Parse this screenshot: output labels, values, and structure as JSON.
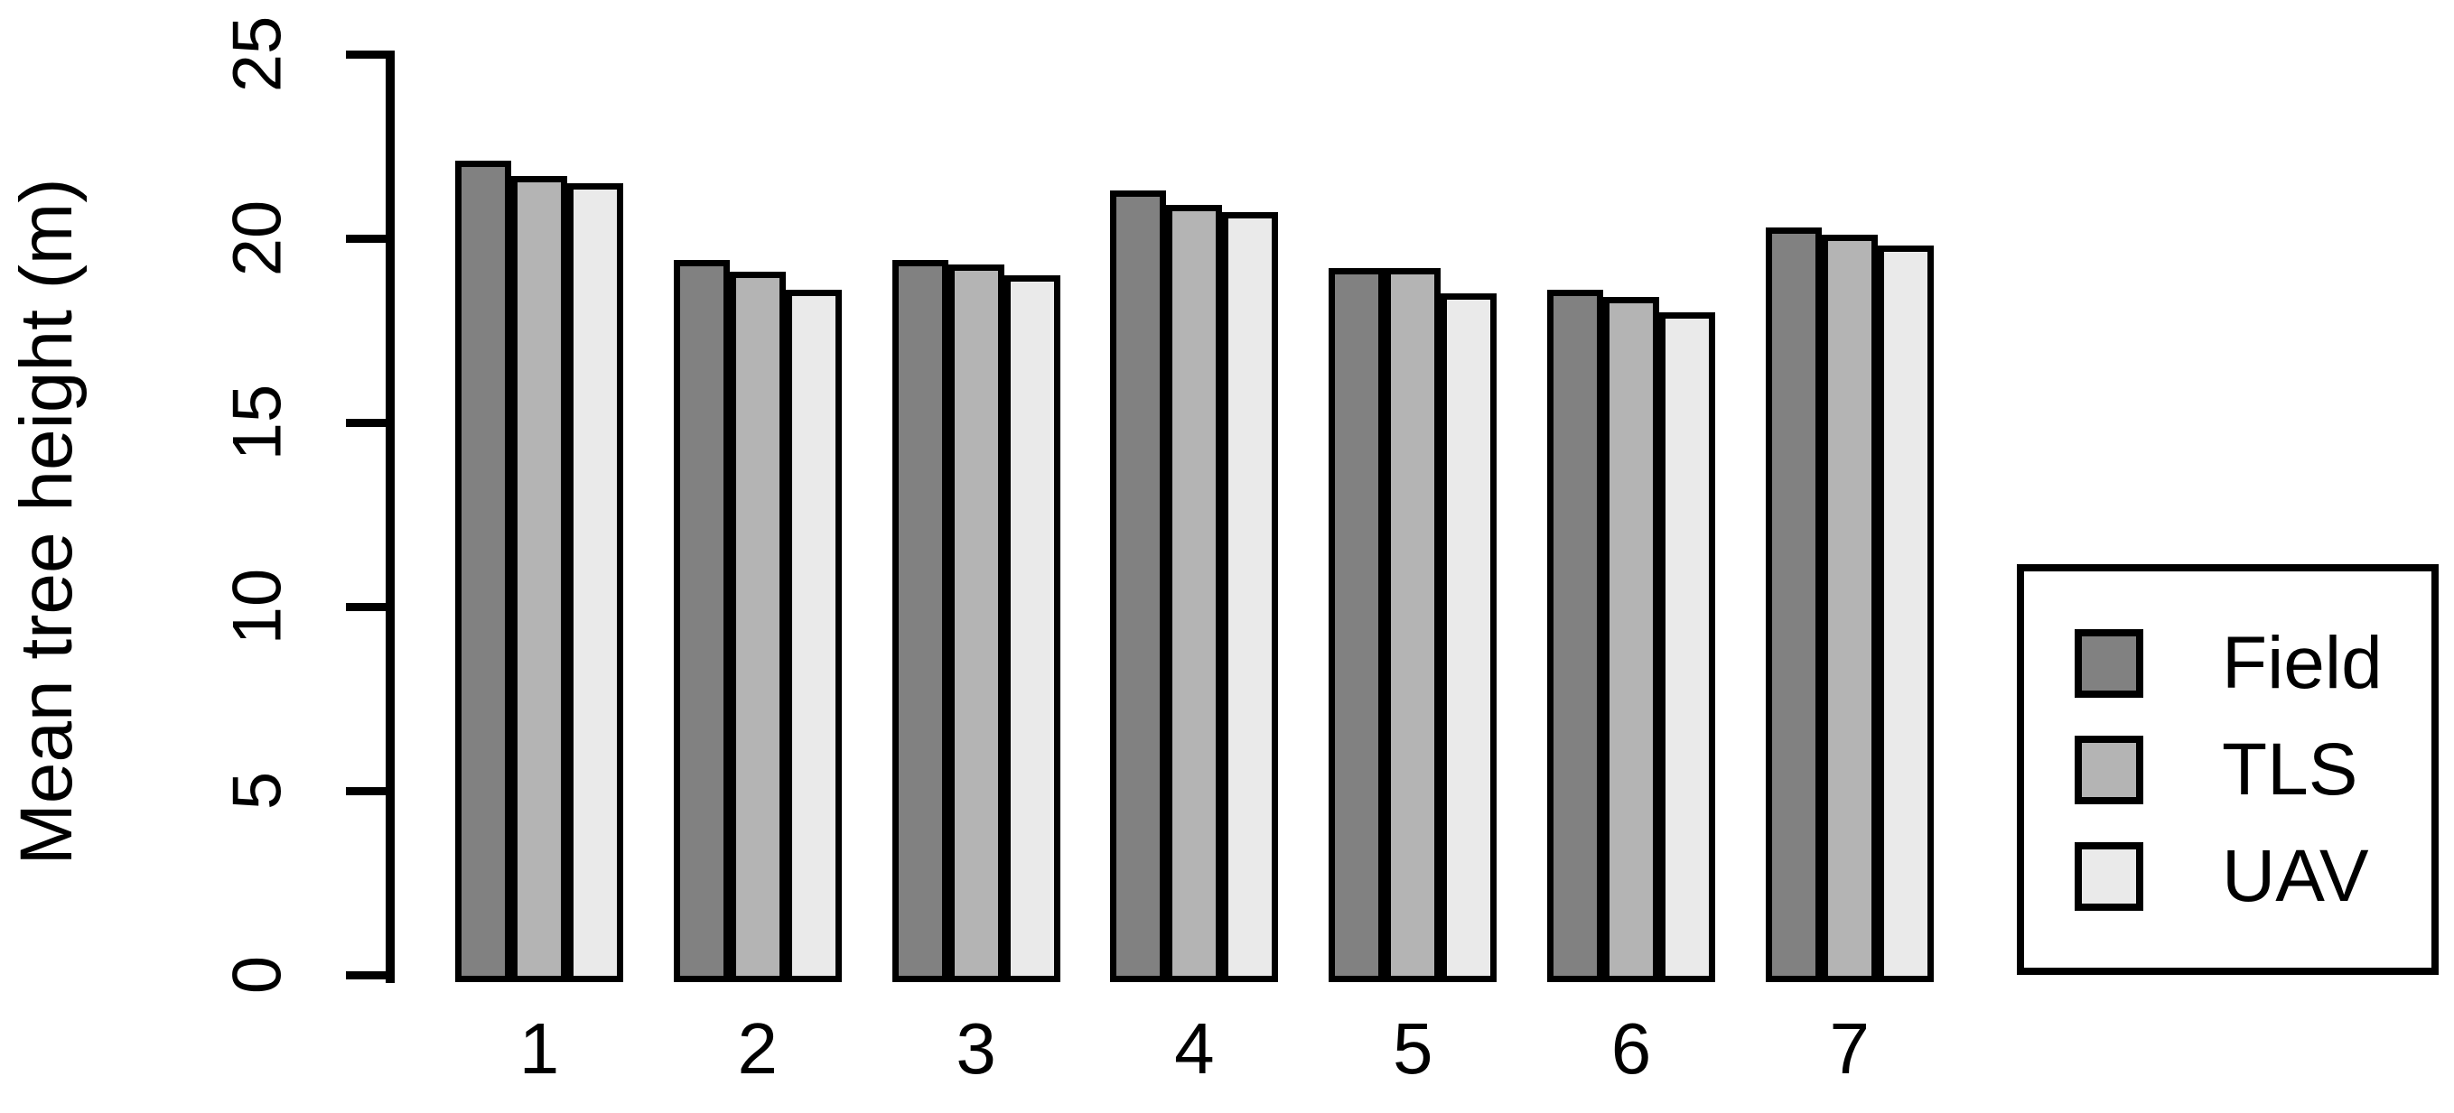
{
  "figure": {
    "background_color": "#ffffff",
    "axis_color": "#000000",
    "text_color": "#000000"
  },
  "chart_data": {
    "type": "bar",
    "title": "",
    "xlabel": "",
    "ylabel": "Mean tree height (m)",
    "categories": [
      "1",
      "2",
      "3",
      "4",
      "5",
      "6",
      "7"
    ],
    "series": [
      {
        "name": "Field",
        "color": "#818181",
        "values": [
          22.1,
          19.4,
          19.4,
          21.3,
          19.2,
          18.6,
          20.3
        ]
      },
      {
        "name": "TLS",
        "color": "#b4b4b4",
        "values": [
          21.7,
          19.1,
          19.3,
          20.9,
          19.2,
          18.4,
          20.1
        ]
      },
      {
        "name": "UAV",
        "color": "#eaeaea",
        "values": [
          21.5,
          18.6,
          19.0,
          20.7,
          18.5,
          18.0,
          19.8
        ]
      }
    ],
    "ylim": [
      0,
      25
    ],
    "yticks": [
      0,
      5,
      10,
      15,
      20,
      25
    ],
    "bar_border_color": "#000000",
    "grid": false,
    "legend": {
      "position": "right",
      "entries": [
        "Field",
        "TLS",
        "UAV"
      ]
    }
  }
}
